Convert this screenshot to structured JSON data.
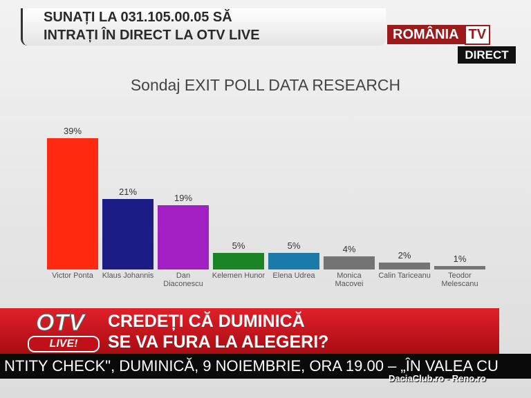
{
  "banner": {
    "line1": "SUNAȚI LA 031.105.00.05 SĂ",
    "line2": "INTRAȚI ÎN DIRECT LA OTV LIVE"
  },
  "logo": {
    "name": "ROMÂNIA",
    "tv": "TV",
    "live": "DIRECT"
  },
  "chart_data": {
    "type": "bar",
    "title": "Sondaj EXIT POLL DATA RESEARCH",
    "categories": [
      "Victor Ponta",
      "Klaus Johannis",
      "Dan Diaconescu",
      "Kelemen Hunor",
      "Elena Udrea",
      "Monica Macovei",
      "Calin Tariceanu",
      "Teodor Melescanu"
    ],
    "values": [
      39,
      21,
      19,
      5,
      5,
      4,
      2,
      1
    ],
    "value_labels": [
      "39%",
      "21%",
      "19%",
      "5%",
      "5%",
      "4%",
      "2%",
      "1%"
    ],
    "colors": [
      "#ff2a10",
      "#1c1c86",
      "#a21fc4",
      "#1b8424",
      "#1a7aaa",
      "#747474",
      "#747474",
      "#747474"
    ]
  },
  "lower_third": {
    "logo": "OTV",
    "logo_sub": "LIVE!",
    "line1": "CREDEȚI CĂ DUMINICĂ",
    "line2": "SE VA FURA LA ALEGERI?"
  },
  "ticker": "NTITY CHECK\", DUMINICĂ, 9 NOIEMBRIE, ORA 19.00 – „ÎN VALEA CU",
  "watermark": "DaciaClub.ro - Reno.ro"
}
